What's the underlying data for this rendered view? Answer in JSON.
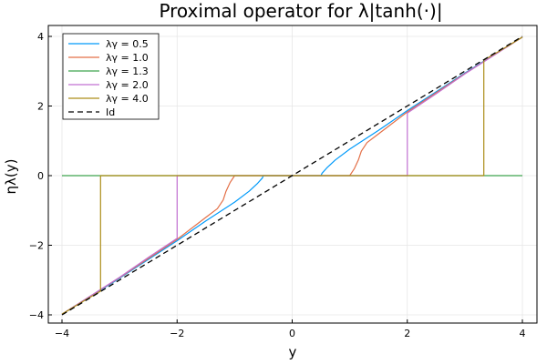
{
  "chart_data": {
    "type": "line",
    "title": "Proximal operator for λ|tanh(·)|",
    "xlabel": "y",
    "ylabel": "ηλ(y)",
    "xlim": [
      -4,
      4
    ],
    "ylim": [
      -4,
      4
    ],
    "xticks": [
      -4,
      -2,
      0,
      2,
      4
    ],
    "yticks": [
      -4,
      -2,
      0,
      2,
      4
    ],
    "xtick_labels": [
      "−4",
      "−2",
      "0",
      "2",
      "4"
    ],
    "ytick_labels": [
      "−4",
      "−2",
      "0",
      "2",
      "4"
    ],
    "grid": true,
    "legend_position": "top-left",
    "series": [
      {
        "name": "λγ = 0.5",
        "color": "#009AFA",
        "dash": "solid",
        "points": [
          [
            -4,
            -3.98
          ],
          [
            -3,
            -2.95
          ],
          [
            -2,
            -1.87
          ],
          [
            -1.5,
            -1.3
          ],
          [
            -1.0,
            -0.76
          ],
          [
            -0.75,
            -0.45
          ],
          [
            -0.6,
            -0.22
          ],
          [
            -0.52,
            -0.07
          ],
          [
            -0.5,
            0
          ],
          [
            0.5,
            0
          ],
          [
            0.52,
            0.07
          ],
          [
            0.6,
            0.22
          ],
          [
            0.75,
            0.45
          ],
          [
            1.0,
            0.76
          ],
          [
            1.5,
            1.3
          ],
          [
            2,
            1.87
          ],
          [
            3,
            2.95
          ],
          [
            4,
            3.98
          ]
        ]
      },
      {
        "name": "λγ = 1.0",
        "color": "#E36F47",
        "dash": "solid",
        "points": [
          [
            -4,
            -3.98
          ],
          [
            -3,
            -2.93
          ],
          [
            -2,
            -1.83
          ],
          [
            -1.5,
            -1.2
          ],
          [
            -1.3,
            -0.95
          ],
          [
            -1.2,
            -0.7
          ],
          [
            -1.15,
            -0.45
          ],
          [
            -1.08,
            -0.2
          ],
          [
            -1.0,
            0
          ],
          [
            1.0,
            0
          ],
          [
            1.08,
            0.2
          ],
          [
            1.15,
            0.45
          ],
          [
            1.2,
            0.7
          ],
          [
            1.3,
            0.95
          ],
          [
            1.5,
            1.2
          ],
          [
            2,
            1.83
          ],
          [
            3,
            2.93
          ],
          [
            4,
            3.98
          ]
        ]
      },
      {
        "name": "λγ = 1.3",
        "color": "#3EA44E",
        "dash": "solid",
        "points": [
          [
            -4,
            0
          ],
          [
            4,
            0
          ]
        ]
      },
      {
        "name": "λγ = 2.0",
        "color": "#C271D2",
        "dash": "solid",
        "points": [
          [
            -4,
            -3.98
          ],
          [
            -3,
            -2.92
          ],
          [
            -2.5,
            -2.35
          ],
          [
            -2.0,
            -1.8
          ],
          [
            -2.0,
            0
          ],
          [
            2.0,
            0
          ],
          [
            2.0,
            1.8
          ],
          [
            2.5,
            2.35
          ],
          [
            3,
            2.92
          ],
          [
            4,
            3.98
          ]
        ]
      },
      {
        "name": "λγ = 4.0",
        "color": "#AC8D18",
        "dash": "solid",
        "points": [
          [
            -4,
            -3.98
          ],
          [
            -3.6,
            -3.58
          ],
          [
            -3.33,
            -3.32
          ],
          [
            -3.33,
            0
          ],
          [
            3.33,
            0
          ],
          [
            3.33,
            3.32
          ],
          [
            3.6,
            3.58
          ],
          [
            4,
            3.98
          ]
        ]
      },
      {
        "name": "Id",
        "color": "#000000",
        "dash": "dashed",
        "points": [
          [
            -4,
            -4
          ],
          [
            4,
            4
          ]
        ]
      }
    ]
  }
}
